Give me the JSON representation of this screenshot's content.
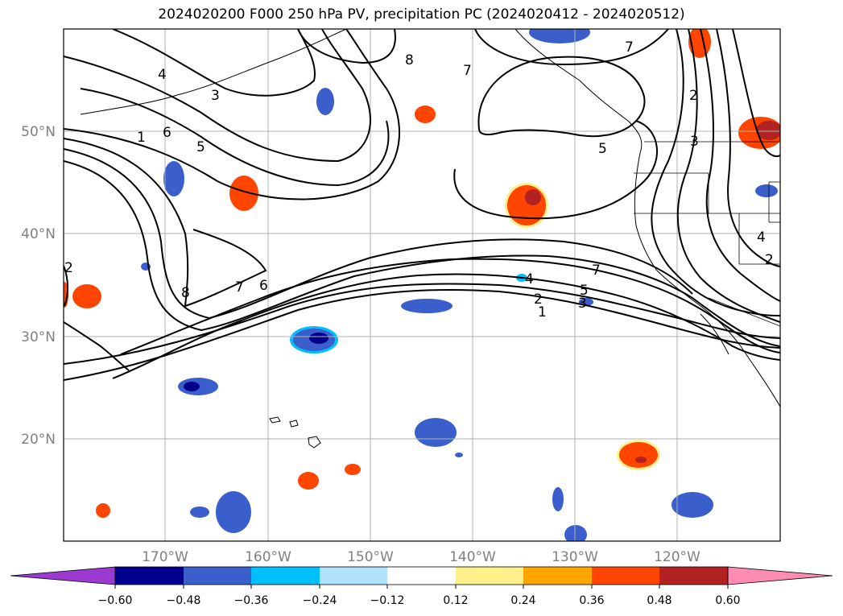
{
  "title": "2024020200 F000 250 hPa PV, precipitation PC (2024020412 - 2024020512)",
  "lat_labels": [
    "50°N",
    "40°N",
    "30°N",
    "20°N"
  ],
  "lon_labels": [
    "170°W",
    "160°W",
    "150°W",
    "140°W",
    "130°W",
    "120°W"
  ],
  "colorbar": {
    "ticks": [
      "−0.60",
      "−0.48",
      "−0.36",
      "−0.24",
      "−0.12",
      "0.12",
      "0.24",
      "0.36",
      "0.48",
      "0.60"
    ],
    "colors": {
      "extend_low": "#9a3ad0",
      "c1": "#00008c",
      "c2": "#3a5fcd",
      "c3": "#00bfff",
      "c4": "#b0e2ff",
      "c5": "#ffffff",
      "c6": "#fff08c",
      "c7": "#ffa500",
      "c8": "#ff4500",
      "c9": "#b22222",
      "extend_high": "#ff8cb4"
    }
  },
  "pv_contour_labels": [
    "4",
    "3",
    "1",
    "6",
    "5",
    "2",
    "8",
    "7",
    "6",
    "8",
    "7",
    "5",
    "7",
    "2",
    "3",
    "4",
    "2",
    "1",
    "5",
    "3",
    "7",
    "4",
    "2"
  ],
  "map": {
    "projection": "PlateCarree",
    "lon_range": [
      -180,
      -110
    ],
    "lat_range": [
      10,
      60
    ],
    "gridlines": true,
    "coastlines": true
  }
}
